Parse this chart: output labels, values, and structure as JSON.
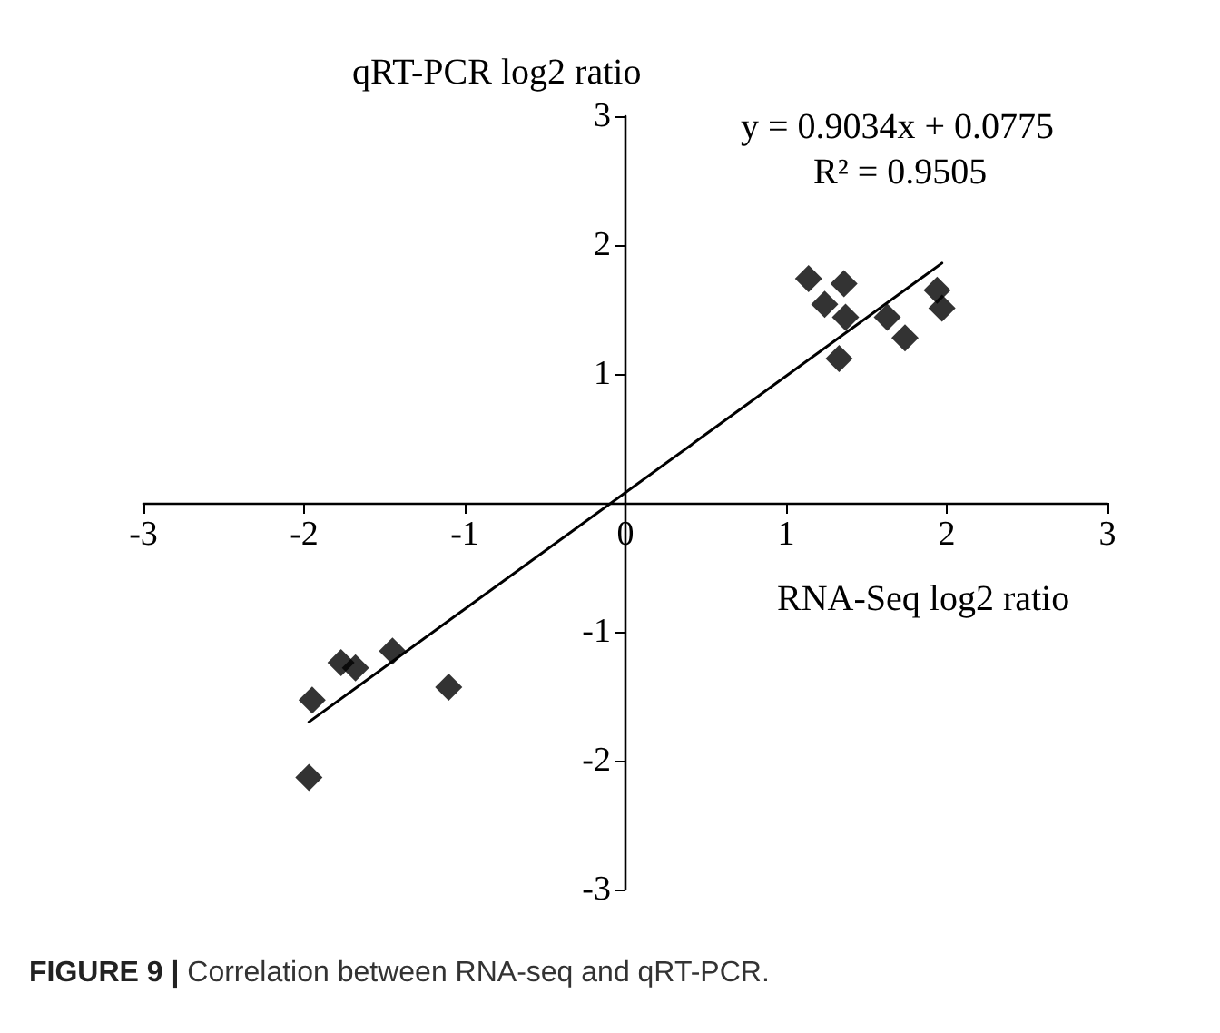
{
  "chart_data": {
    "type": "scatter",
    "xlabel": "RNA-Seq log2 ratio",
    "ylabel": "qRT-PCR log2 ratio",
    "annotations": [
      "y = 0.9034x + 0.0775",
      "R² = 0.9505",
      "FIGURE 9 | Correlation between RNA-seq and qRT-PCR."
    ],
    "series": [
      {
        "type": "scatter",
        "color": "#000000",
        "marker": "diamond",
        "x": [
          1.14,
          1.36,
          1.24,
          1.37,
          1.33,
          1.63,
          1.74,
          1.94,
          1.97,
          -1.95,
          -1.77,
          -1.68,
          -1.45,
          -1.1,
          -1.97
        ],
        "values": [
          1.74,
          1.7,
          1.54,
          1.44,
          1.12,
          1.44,
          1.28,
          1.65,
          1.51,
          -1.53,
          -1.24,
          -1.28,
          -1.15,
          -1.43,
          -2.13
        ]
      },
      {
        "type": "line",
        "color": "#000000",
        "marker": "none",
        "line_style": "solid",
        "x": [
          -1.97,
          1.97
        ],
        "values": [
          -1.7,
          1.86
        ]
      }
    ],
    "xlim": [
      -3,
      3
    ],
    "xticks": [
      -3,
      -2,
      -1,
      0,
      1,
      2,
      3
    ],
    "ylim": [
      -3,
      3
    ],
    "yticks": [
      -3,
      -2,
      -1,
      {
        "value": 0,
        "label": null
      },
      1,
      2,
      3
    ],
    "grid": false
  }
}
